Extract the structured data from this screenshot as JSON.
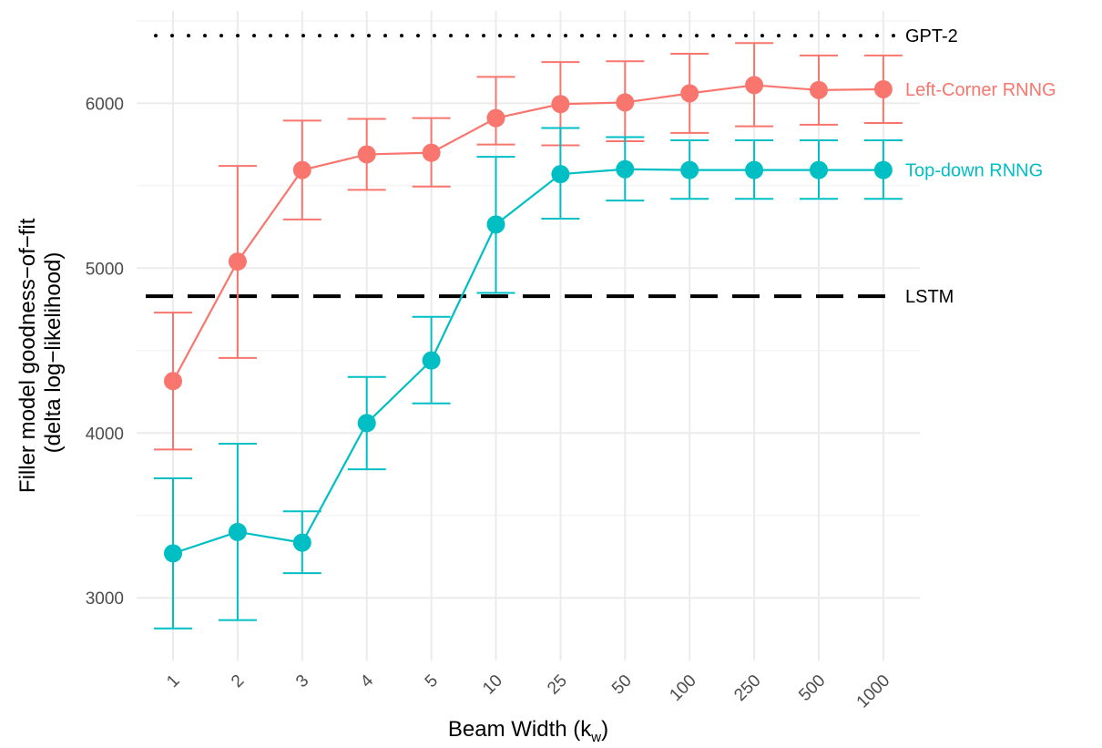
{
  "chart_data": {
    "type": "line",
    "title": "",
    "xlabel": "Beam Width (k",
    "xlabel_sub": "w",
    "xlabel_close": ")",
    "ylabel_line1": "Filler model goodness−of−fit",
    "ylabel_line2": "(delta log−likelihood)",
    "categories": [
      "1",
      "2",
      "3",
      "4",
      "5",
      "10",
      "25",
      "50",
      "100",
      "250",
      "500",
      "1000"
    ],
    "ylim": [
      2620,
      6560
    ],
    "yticks": [
      3000,
      4000,
      5000,
      6000
    ],
    "grid": true,
    "series": [
      {
        "name": "Left-Corner RNNG",
        "color": "#F8766D",
        "values": [
          4315,
          5040,
          5595,
          5690,
          5700,
          5910,
          5995,
          6005,
          6060,
          6110,
          6080,
          6085
        ],
        "lower": [
          3900,
          4455,
          5295,
          5475,
          5495,
          5750,
          5745,
          5770,
          5820,
          5860,
          5870,
          5880
        ],
        "upper": [
          4730,
          5620,
          5895,
          5905,
          5910,
          6160,
          6250,
          6255,
          6300,
          6365,
          6290,
          6290
        ]
      },
      {
        "name": "Top-down RNNG",
        "color": "#00BFC4",
        "values": [
          3270,
          3400,
          3335,
          4060,
          4440,
          5265,
          5570,
          5600,
          5595,
          5595,
          5595,
          5595
        ],
        "lower": [
          2815,
          2865,
          3150,
          3780,
          4180,
          4850,
          5300,
          5410,
          5420,
          5420,
          5420,
          5420
        ],
        "upper": [
          3725,
          3935,
          3525,
          4340,
          4705,
          5675,
          5850,
          5795,
          5775,
          5775,
          5775,
          5775
        ]
      }
    ],
    "reference_lines": [
      {
        "name": "GPT-2",
        "value": 6410,
        "style": "dotted",
        "color": "#000000"
      },
      {
        "name": "LSTM",
        "value": 4830,
        "style": "dashed",
        "color": "#000000"
      }
    ]
  }
}
